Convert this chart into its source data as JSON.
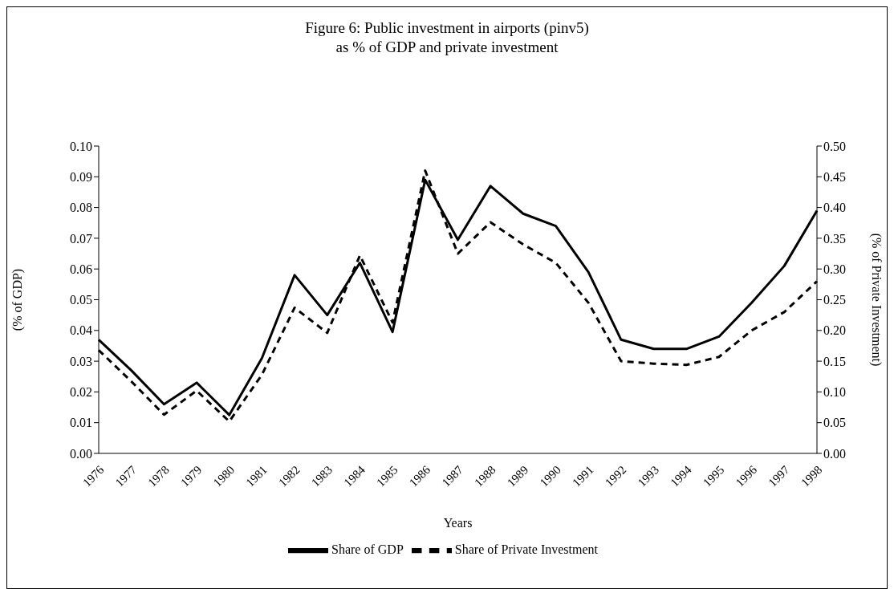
{
  "chart_data": {
    "type": "line",
    "title": "Figure 6: Public investment in airports (pinv5)\nas % of GDP and private investment",
    "xlabel": "Years",
    "ylabel": "(% of GDP)",
    "y2label": "(% of Private Investment)",
    "categories": [
      "1976",
      "1977",
      "1978",
      "1979",
      "1980",
      "1981",
      "1982",
      "1983",
      "1984",
      "1985",
      "1986",
      "1987",
      "1988",
      "1989",
      "1990",
      "1991",
      "1992",
      "1993",
      "1994",
      "1995",
      "1996",
      "1997",
      "1998"
    ],
    "series": [
      {
        "name": "Share of GDP",
        "color": "#000000",
        "line_style": "solid",
        "values": [
          0.037,
          0.027,
          0.016,
          0.023,
          0.0125,
          0.031,
          0.058,
          0.045,
          0.062,
          0.0395,
          0.089,
          0.0695,
          0.087,
          0.078,
          0.074,
          0.059,
          0.037,
          0.034,
          0.034,
          0.038,
          0.049,
          0.061,
          0.079
        ]
      },
      {
        "name": "Share of Private Investment",
        "color": "#000000",
        "line_style": "dashed",
        "axis": "y2",
        "values": [
          0.168,
          0.117,
          0.063,
          0.102,
          0.052,
          0.128,
          0.237,
          0.196,
          0.322,
          0.213,
          0.46,
          0.325,
          0.376,
          0.34,
          0.31,
          0.245,
          0.15,
          0.146,
          0.144,
          0.157,
          0.2,
          0.23,
          0.28
        ]
      }
    ],
    "ylim": [
      0,
      0.1
    ],
    "yticks": [
      {
        "value": 0,
        "label": "0.00"
      },
      {
        "value": 0.01,
        "label": "0.01"
      },
      {
        "value": 0.02,
        "label": "0.02"
      },
      {
        "value": 0.03,
        "label": "0.03"
      },
      {
        "value": 0.04,
        "label": "0.04"
      },
      {
        "value": 0.05,
        "label": "0.05"
      },
      {
        "value": 0.06,
        "label": "0.06"
      },
      {
        "value": 0.07,
        "label": "0.07"
      },
      {
        "value": 0.08,
        "label": "0.08"
      },
      {
        "value": 0.09,
        "label": "0.09"
      },
      {
        "value": 0.1,
        "label": "0.10"
      }
    ],
    "y2lim": [
      0,
      0.5
    ],
    "y2ticks": [
      {
        "value": 0,
        "label": "0.00"
      },
      {
        "value": 0.05,
        "label": "0.05"
      },
      {
        "value": 0.1,
        "label": "0.10"
      },
      {
        "value": 0.15,
        "label": "0.15"
      },
      {
        "value": 0.2,
        "label": "0.20"
      },
      {
        "value": 0.25,
        "label": "0.25"
      },
      {
        "value": 0.3,
        "label": "0.30"
      },
      {
        "value": 0.35,
        "label": "0.35"
      },
      {
        "value": 0.4,
        "label": "0.40"
      },
      {
        "value": 0.45,
        "label": "0.45"
      },
      {
        "value": 0.5,
        "label": "0.50"
      }
    ],
    "grid": false,
    "legend": "bottom",
    "marker": "none"
  }
}
